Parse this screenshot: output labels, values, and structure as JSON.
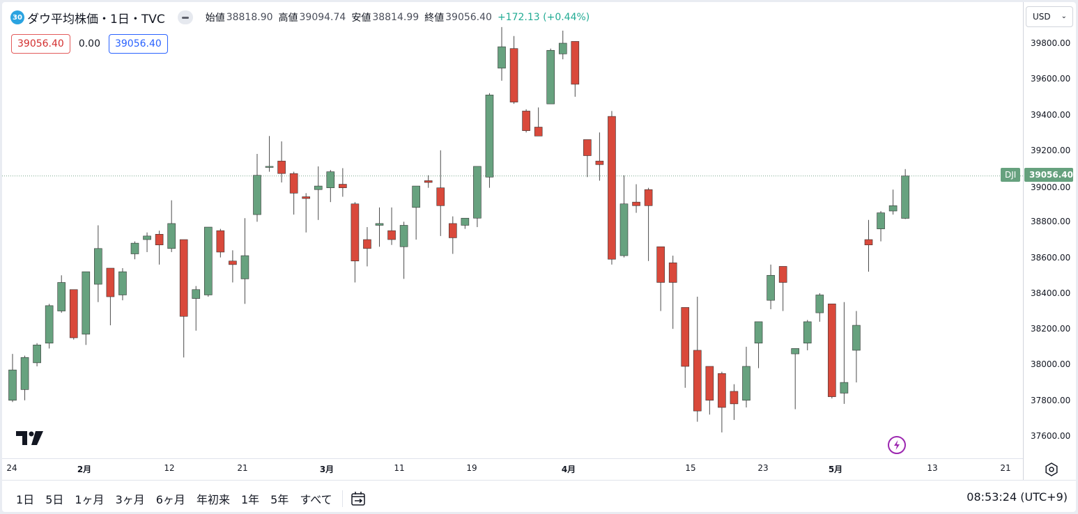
{
  "legend": {
    "badge": "30",
    "title": "ダウ平均株価・1日・TVC",
    "open_label": "始値",
    "open_value": "38818.90",
    "high_label": "高値",
    "high_value": "39094.74",
    "low_label": "安値",
    "low_value": "38814.99",
    "close_label": "終値",
    "close_value": "39056.40",
    "change": "+172.13 (+0.44%)"
  },
  "quick_trade": {
    "sell": "39056.40",
    "spread": "0.00",
    "buy": "39056.40"
  },
  "price_axis": {
    "currency": "USD",
    "ticks": [
      "39800.00",
      "39600.00",
      "39400.00",
      "39200.00",
      "39000.00",
      "38800.00",
      "38600.00",
      "38400.00",
      "38200.00",
      "38000.00",
      "37800.00",
      "37600.00"
    ],
    "last_price": "39056.40",
    "symbol_tag": "DJI"
  },
  "time_axis": {
    "ticks": [
      {
        "label": "24",
        "month": false
      },
      {
        "label": "2月",
        "month": true
      },
      {
        "label": "12",
        "month": false
      },
      {
        "label": "21",
        "month": false
      },
      {
        "label": "3月",
        "month": true
      },
      {
        "label": "11",
        "month": false
      },
      {
        "label": "19",
        "month": false
      },
      {
        "label": "4月",
        "month": true
      },
      {
        "label": "15",
        "month": false
      },
      {
        "label": "23",
        "month": false
      },
      {
        "label": "5月",
        "month": true
      },
      {
        "label": "13",
        "month": false
      },
      {
        "label": "21",
        "month": false
      }
    ]
  },
  "toolbar": {
    "ranges": [
      "1日",
      "5日",
      "1ヶ月",
      "3ヶ月",
      "6ヶ月",
      "年初来",
      "1年",
      "5年",
      "すべて"
    ],
    "clock": "08:53:24 (UTC+9)"
  },
  "colors": {
    "up": "#67a27f",
    "down": "#d9493b",
    "wick": "#4a4a4a",
    "accent": "#2962ff"
  },
  "icons": {
    "logo": "tradingview-logo-icon",
    "bolt": "lightning-icon",
    "settings": "settings-icon",
    "date_range": "calendar-range-icon"
  },
  "chart_data": {
    "type": "candlestick",
    "ylim": [
      37550,
      39900
    ],
    "last_price": 39056.4,
    "candles": [
      {
        "o": 37800,
        "h": 38060,
        "l": 37790,
        "c": 37970
      },
      {
        "o": 37860,
        "h": 38050,
        "l": 37800,
        "c": 38040
      },
      {
        "o": 38010,
        "h": 38120,
        "l": 37990,
        "c": 38110
      },
      {
        "o": 38120,
        "h": 38340,
        "l": 38090,
        "c": 38330
      },
      {
        "o": 38300,
        "h": 38500,
        "l": 38290,
        "c": 38460
      },
      {
        "o": 38420,
        "h": 38420,
        "l": 38140,
        "c": 38150
      },
      {
        "o": 38170,
        "h": 38520,
        "l": 38110,
        "c": 38520
      },
      {
        "o": 38450,
        "h": 38780,
        "l": 38350,
        "c": 38650
      },
      {
        "o": 38540,
        "h": 38540,
        "l": 38220,
        "c": 38380
      },
      {
        "o": 38390,
        "h": 38540,
        "l": 38360,
        "c": 38520
      },
      {
        "o": 38620,
        "h": 38690,
        "l": 38590,
        "c": 38680
      },
      {
        "o": 38700,
        "h": 38740,
        "l": 38630,
        "c": 38720
      },
      {
        "o": 38730,
        "h": 38750,
        "l": 38560,
        "c": 38670
      },
      {
        "o": 38650,
        "h": 38920,
        "l": 38630,
        "c": 38790
      },
      {
        "o": 38700,
        "h": 38700,
        "l": 38040,
        "c": 38270
      },
      {
        "o": 38370,
        "h": 38440,
        "l": 38190,
        "c": 38420
      },
      {
        "o": 38390,
        "h": 38770,
        "l": 38380,
        "c": 38770
      },
      {
        "o": 38750,
        "h": 38760,
        "l": 38600,
        "c": 38630
      },
      {
        "o": 38580,
        "h": 38640,
        "l": 38460,
        "c": 38560
      },
      {
        "o": 38480,
        "h": 38820,
        "l": 38340,
        "c": 38610
      },
      {
        "o": 38840,
        "h": 39180,
        "l": 38800,
        "c": 39060
      },
      {
        "o": 39110,
        "h": 39280,
        "l": 39080,
        "c": 39110
      },
      {
        "o": 39140,
        "h": 39250,
        "l": 39020,
        "c": 39070
      },
      {
        "o": 39070,
        "h": 39080,
        "l": 38840,
        "c": 38960
      },
      {
        "o": 38940,
        "h": 38960,
        "l": 38740,
        "c": 38930
      },
      {
        "o": 38980,
        "h": 39110,
        "l": 38810,
        "c": 39000
      },
      {
        "o": 38990,
        "h": 39090,
        "l": 38910,
        "c": 39080
      },
      {
        "o": 39010,
        "h": 39100,
        "l": 38940,
        "c": 38990
      },
      {
        "o": 38900,
        "h": 38910,
        "l": 38460,
        "c": 38580
      },
      {
        "o": 38700,
        "h": 38770,
        "l": 38550,
        "c": 38650
      },
      {
        "o": 38780,
        "h": 38880,
        "l": 38660,
        "c": 38790
      },
      {
        "o": 38750,
        "h": 38880,
        "l": 38670,
        "c": 38700
      },
      {
        "o": 38660,
        "h": 38800,
        "l": 38480,
        "c": 38780
      },
      {
        "o": 38880,
        "h": 38990,
        "l": 38700,
        "c": 39000
      },
      {
        "o": 39030,
        "h": 39060,
        "l": 38990,
        "c": 39020
      },
      {
        "o": 38990,
        "h": 39200,
        "l": 38720,
        "c": 38890
      },
      {
        "o": 38790,
        "h": 38830,
        "l": 38620,
        "c": 38710
      },
      {
        "o": 38780,
        "h": 38820,
        "l": 38760,
        "c": 38820
      },
      {
        "o": 38820,
        "h": 39100,
        "l": 38770,
        "c": 39110
      },
      {
        "o": 39050,
        "h": 39520,
        "l": 38990,
        "c": 39510
      },
      {
        "o": 39660,
        "h": 39890,
        "l": 39590,
        "c": 39780
      },
      {
        "o": 39770,
        "h": 39840,
        "l": 39460,
        "c": 39470
      },
      {
        "o": 39420,
        "h": 39430,
        "l": 39300,
        "c": 39310
      },
      {
        "o": 39330,
        "h": 39440,
        "l": 39280,
        "c": 39280
      },
      {
        "o": 39460,
        "h": 39770,
        "l": 39460,
        "c": 39760
      },
      {
        "o": 39740,
        "h": 39870,
        "l": 39710,
        "c": 39800
      },
      {
        "o": 39810,
        "h": 39810,
        "l": 39500,
        "c": 39570
      },
      {
        "o": 39260,
        "h": 39260,
        "l": 39050,
        "c": 39170
      },
      {
        "o": 39140,
        "h": 39300,
        "l": 39030,
        "c": 39120
      },
      {
        "o": 39390,
        "h": 39420,
        "l": 38560,
        "c": 38590
      },
      {
        "o": 38610,
        "h": 39060,
        "l": 38600,
        "c": 38900
      },
      {
        "o": 38910,
        "h": 39010,
        "l": 38850,
        "c": 38890
      },
      {
        "o": 38980,
        "h": 38990,
        "l": 38580,
        "c": 38890
      },
      {
        "o": 38660,
        "h": 38660,
        "l": 38300,
        "c": 38460
      },
      {
        "o": 38570,
        "h": 38610,
        "l": 38200,
        "c": 38460
      },
      {
        "o": 38320,
        "h": 38320,
        "l": 37870,
        "c": 37990
      },
      {
        "o": 38080,
        "h": 38380,
        "l": 37680,
        "c": 37740
      },
      {
        "o": 37990,
        "h": 37990,
        "l": 37720,
        "c": 37800
      },
      {
        "o": 37950,
        "h": 37960,
        "l": 37620,
        "c": 37760
      },
      {
        "o": 37850,
        "h": 37890,
        "l": 37690,
        "c": 37780
      },
      {
        "o": 37800,
        "h": 38100,
        "l": 37760,
        "c": 37990
      },
      {
        "o": 38120,
        "h": 38240,
        "l": 37980,
        "c": 38240
      },
      {
        "o": 38360,
        "h": 38560,
        "l": 38310,
        "c": 38500
      },
      {
        "o": 38550,
        "h": 38550,
        "l": 38300,
        "c": 38460
      },
      {
        "o": 38060,
        "h": 38090,
        "l": 37750,
        "c": 38090
      },
      {
        "o": 38120,
        "h": 38250,
        "l": 38080,
        "c": 38240
      },
      {
        "o": 38290,
        "h": 38400,
        "l": 38240,
        "c": 38390
      },
      {
        "o": 38340,
        "h": 38340,
        "l": 37810,
        "c": 37820
      },
      {
        "o": 37840,
        "h": 38350,
        "l": 37780,
        "c": 37900
      },
      {
        "o": 38080,
        "h": 38300,
        "l": 37900,
        "c": 38220
      },
      {
        "o": 38700,
        "h": 38810,
        "l": 38520,
        "c": 38670
      },
      {
        "o": 38760,
        "h": 38860,
        "l": 38690,
        "c": 38850
      },
      {
        "o": 38860,
        "h": 38980,
        "l": 38840,
        "c": 38890
      },
      {
        "o": 38818.9,
        "h": 39094.74,
        "l": 38814.99,
        "c": 39056.4
      }
    ]
  }
}
